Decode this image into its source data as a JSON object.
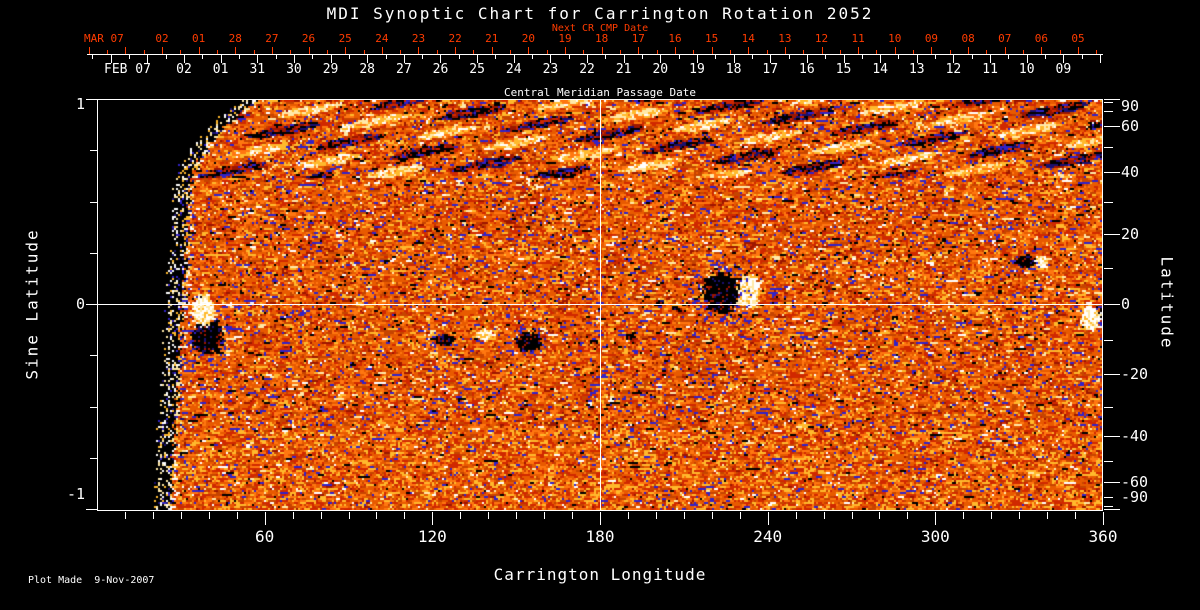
{
  "chart_data": {
    "type": "heatmap",
    "title": "MDI Synoptic Chart for Carrington Rotation 2052",
    "footer": "Plot Made  9-Nov-2007",
    "x_axis": {
      "label": "Carrington Longitude",
      "range": [
        0,
        360
      ],
      "major_ticks": [
        "60",
        "120",
        "180",
        "240",
        "300",
        "360"
      ],
      "minor_tick_step_deg": 10
    },
    "left_axis": {
      "label": "Sine Latitude",
      "range": [
        -1,
        1
      ],
      "major_ticks": [
        "1",
        "0",
        "-1"
      ],
      "minor_tick_step": 0.25
    },
    "right_axis": {
      "label": "Latitude",
      "scale": "sine-of-latitude",
      "major_ticks": [
        "90",
        "60",
        "40",
        "20",
        "0",
        "-20",
        "-40",
        "-60",
        "-90"
      ],
      "minor_tick_step_deg": 10
    },
    "next_cr_axis": {
      "title": "Next CR CMP Date",
      "month_label": "MAR 07",
      "day_labels": [
        "02",
        "01",
        "28",
        "27",
        "26",
        "25",
        "24",
        "23",
        "22",
        "21",
        "20",
        "19",
        "18",
        "17",
        "16",
        "15",
        "14",
        "13",
        "12",
        "11",
        "10",
        "09",
        "08",
        "07",
        "06",
        "05"
      ],
      "color": "#ff3c00"
    },
    "cmp_axis": {
      "title": "Central Meridian Passage Date",
      "month_label": "FEB 07",
      "day_labels": [
        "02",
        "01",
        "31",
        "30",
        "29",
        "28",
        "27",
        "26",
        "25",
        "24",
        "23",
        "22",
        "21",
        "20",
        "19",
        "18",
        "17",
        "16",
        "15",
        "14",
        "13",
        "12",
        "11",
        "10",
        "09"
      ]
    },
    "crosshair": {
      "longitude_deg": 180,
      "sine_latitude": 0
    },
    "data_gap": {
      "description": "black no-data region at low Carrington longitudes with curved ragged left boundary fringed by white speckles",
      "top_edge_lon_deg": 57,
      "bottom_edge_lon_deg": 26
    },
    "colormap": {
      "background": "#000000",
      "base": [
        "#e85a00",
        "#ff7710",
        "#c64400",
        "#d02800",
        "#9c1600"
      ],
      "bright": [
        "#ffb92c",
        "#ffe9a8",
        "#ffffff"
      ],
      "opposite_polarity": [
        "#3222c8",
        "#1a1070",
        "#000000"
      ]
    },
    "active_regions": [
      {
        "lon": 38.2,
        "sin_lat": -0.034,
        "half_w_deg": 4.5,
        "half_h": 0.08,
        "polarity": "positive"
      },
      {
        "lon": 39.5,
        "sin_lat": -0.163,
        "half_w_deg": 6.0,
        "half_h": 0.09,
        "polarity": "negative"
      },
      {
        "lon": 223.4,
        "sin_lat": 0.055,
        "half_w_deg": 7.0,
        "half_h": 0.105,
        "polarity": "negative"
      },
      {
        "lon": 232.9,
        "sin_lat": 0.06,
        "half_w_deg": 4.6,
        "half_h": 0.086,
        "polarity": "positive"
      },
      {
        "lon": 124.5,
        "sin_lat": -0.175,
        "half_w_deg": 3.2,
        "half_h": 0.032,
        "polarity": "negative"
      },
      {
        "lon": 138.6,
        "sin_lat": -0.15,
        "half_w_deg": 3.0,
        "half_h": 0.03,
        "polarity": "positive"
      },
      {
        "lon": 154.3,
        "sin_lat": -0.185,
        "half_w_deg": 5.0,
        "half_h": 0.05,
        "polarity": "negative"
      },
      {
        "lon": 190.7,
        "sin_lat": -0.16,
        "half_w_deg": 1.5,
        "half_h": 0.016,
        "polarity": "negative"
      },
      {
        "lon": 201.3,
        "sin_lat": 0.005,
        "half_w_deg": 1.5,
        "half_h": 0.016,
        "polarity": "negative"
      },
      {
        "lon": 207.0,
        "sin_lat": -0.02,
        "half_w_deg": 1.2,
        "half_h": 0.016,
        "polarity": "negative"
      },
      {
        "lon": 332.1,
        "sin_lat": 0.205,
        "half_w_deg": 3.6,
        "half_h": 0.036,
        "polarity": "negative"
      },
      {
        "lon": 337.9,
        "sin_lat": 0.205,
        "half_w_deg": 2.9,
        "half_h": 0.03,
        "polarity": "positive"
      },
      {
        "lon": 355.7,
        "sin_lat": -0.075,
        "half_w_deg": 3.9,
        "half_h": 0.064,
        "polarity": "positive"
      },
      {
        "lon": 359.3,
        "sin_lat": -0.052,
        "half_w_deg": 1.5,
        "half_h": 0.03,
        "polarity": "negative"
      },
      {
        "lon": 89.0,
        "sin_lat": 0.855,
        "half_w_deg": 2.0,
        "half_h": 0.025,
        "polarity": "positive"
      }
    ]
  }
}
